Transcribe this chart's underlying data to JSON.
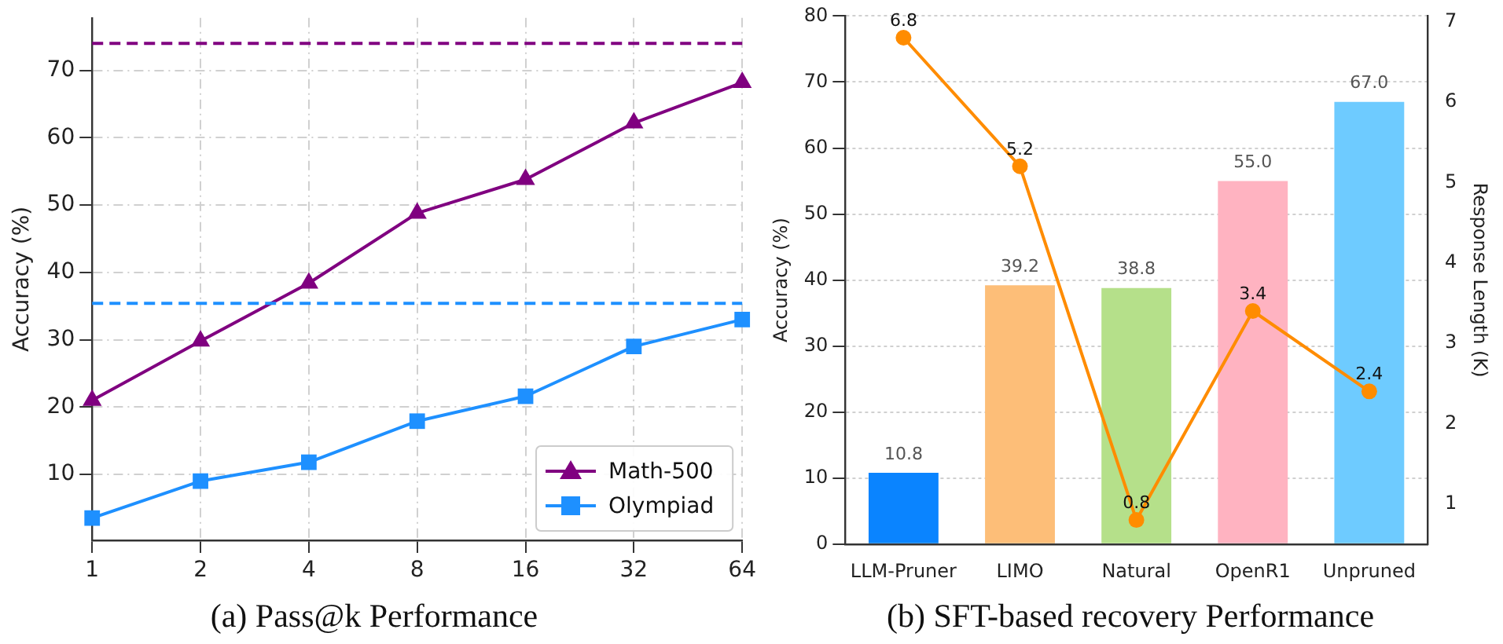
{
  "chart_data": [
    {
      "type": "line",
      "title": "(a) Pass@k Performance",
      "ylabel": "Accuracy (%)",
      "categories": [
        "1",
        "2",
        "4",
        "8",
        "16",
        "32",
        "64"
      ],
      "series": [
        {
          "name": "Math-500",
          "color": "#800080",
          "marker": "triangle",
          "values": [
            21.0,
            29.8,
            38.4,
            48.8,
            53.8,
            62.2,
            68.2
          ]
        },
        {
          "name": "Olympiad",
          "color": "#1e90ff",
          "marker": "square",
          "values": [
            3.5,
            9.0,
            11.8,
            17.9,
            21.6,
            29.0,
            33.0
          ]
        }
      ],
      "ylim": [
        0.2,
        77.8
      ],
      "yticks": [
        10,
        20,
        30,
        40,
        50,
        60,
        70
      ],
      "ref_lines": [
        {
          "axis": "y",
          "value": 74.0,
          "color": "#800080",
          "line_style": "dashed"
        },
        {
          "axis": "y",
          "value": 35.4,
          "color": "#1e90ff",
          "line_style": "dashed"
        }
      ],
      "grid": true,
      "legend": "bottom right",
      "line_style": "solid"
    },
    {
      "type": "bar",
      "title": "(b) SFT-based recovery Performance",
      "ylabel": "Accuracy (%)",
      "y2label": "Response Length (K)",
      "categories": [
        "LLM-Pruner",
        "LIMO",
        "Natural",
        "OpenR1",
        "Unpruned"
      ],
      "series": [
        {
          "type": "bar",
          "colors": [
            "#0a84ff",
            "#fdbe78",
            "#b5e08a",
            "#ffb3c1",
            "#6ecbff"
          ],
          "values": [
            10.8,
            39.2,
            38.8,
            55.0,
            67.0
          ],
          "value_labels": [
            "10.8",
            "39.2",
            "38.8",
            "55.0",
            "67.0"
          ]
        },
        {
          "type": "line",
          "axis": "y2",
          "color": "#ff8c00",
          "marker": "circle",
          "values": [
            6.8,
            5.2,
            0.8,
            3.4,
            2.4
          ],
          "value_labels": [
            "6.8",
            "5.2",
            "0.8",
            "3.4",
            "2.4"
          ]
        }
      ],
      "ylim": [
        0,
        80
      ],
      "yticks": [
        0,
        10,
        20,
        30,
        40,
        50,
        60,
        70,
        80
      ],
      "y2lim": [
        0.5,
        7.07
      ],
      "y2ticks": [
        1,
        2,
        3,
        4,
        5,
        6,
        7
      ],
      "grid": "y",
      "legend": false
    }
  ]
}
